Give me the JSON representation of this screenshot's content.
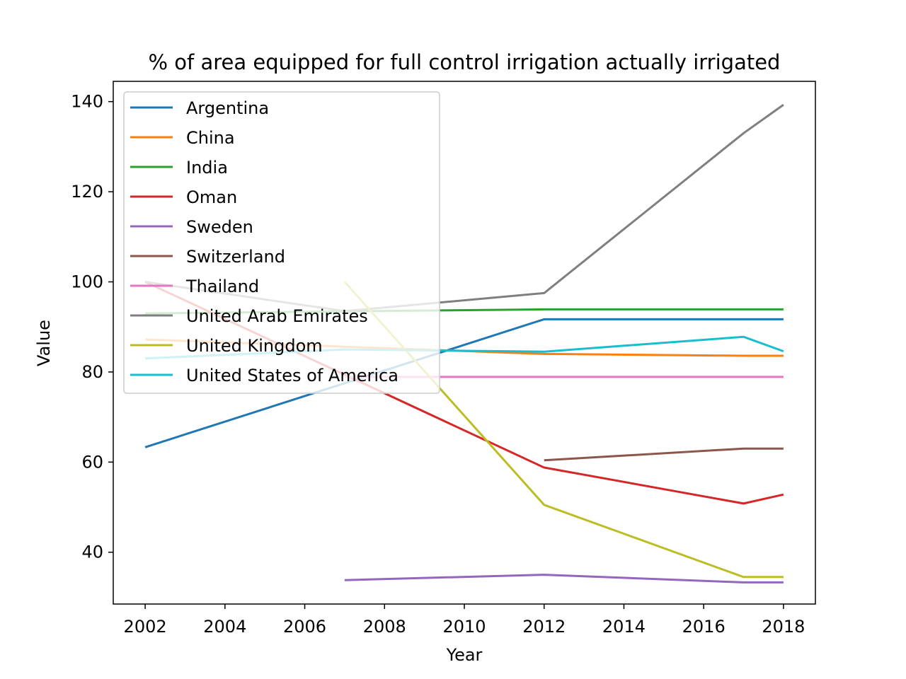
{
  "chart_data": {
    "type": "line",
    "title": "% of area equipped for full control irrigation actually irrigated",
    "xlabel": "Year",
    "ylabel": "Value",
    "xlim": [
      2001.2,
      2018.8
    ],
    "ylim": [
      28.5,
      144.5
    ],
    "xticks": [
      2002,
      2004,
      2006,
      2008,
      2010,
      2012,
      2014,
      2016,
      2018
    ],
    "yticks": [
      40,
      60,
      80,
      100,
      120,
      140
    ],
    "grid": false,
    "legend_position": "upper-left",
    "series": [
      {
        "name": "Argentina",
        "color": "#1f77b4",
        "x": [
          2002,
          2012,
          2017,
          2018
        ],
        "y": [
          63.3,
          91.7,
          91.7,
          91.7
        ]
      },
      {
        "name": "China",
        "color": "#ff7f0e",
        "x": [
          2002,
          2012,
          2017,
          2018
        ],
        "y": [
          87.2,
          84.0,
          83.6,
          83.6
        ]
      },
      {
        "name": "India",
        "color": "#2ca02c",
        "x": [
          2002,
          2012,
          2017,
          2018
        ],
        "y": [
          93.0,
          93.9,
          93.9,
          93.9
        ]
      },
      {
        "name": "Oman",
        "color": "#d62728",
        "x": [
          2002,
          2012,
          2017,
          2018
        ],
        "y": [
          100.0,
          58.8,
          50.8,
          52.8
        ]
      },
      {
        "name": "Sweden",
        "color": "#9467bd",
        "x": [
          2007,
          2012,
          2017,
          2018
        ],
        "y": [
          33.8,
          35.0,
          33.3,
          33.3
        ]
      },
      {
        "name": "Switzerland",
        "color": "#8c564b",
        "x": [
          2012,
          2017,
          2018
        ],
        "y": [
          60.4,
          63.0,
          63.0
        ]
      },
      {
        "name": "Thailand",
        "color": "#e377c2",
        "x": [
          2007,
          2012,
          2017,
          2018
        ],
        "y": [
          78.9,
          78.9,
          78.9,
          78.9
        ]
      },
      {
        "name": "United Arab Emirates",
        "color": "#7f7f7f",
        "x": [
          2002,
          2007,
          2012,
          2017,
          2018
        ],
        "y": [
          100.0,
          93.5,
          97.5,
          133.0,
          139.3
        ]
      },
      {
        "name": "United Kingdom",
        "color": "#bcbd22",
        "x": [
          2007,
          2012,
          2017,
          2018
        ],
        "y": [
          100.0,
          50.5,
          34.5,
          34.5
        ]
      },
      {
        "name": "United States of America",
        "color": "#17becf",
        "x": [
          2002,
          2007,
          2012,
          2017,
          2018
        ],
        "y": [
          83.0,
          85.0,
          84.5,
          87.8,
          84.6
        ]
      }
    ]
  }
}
